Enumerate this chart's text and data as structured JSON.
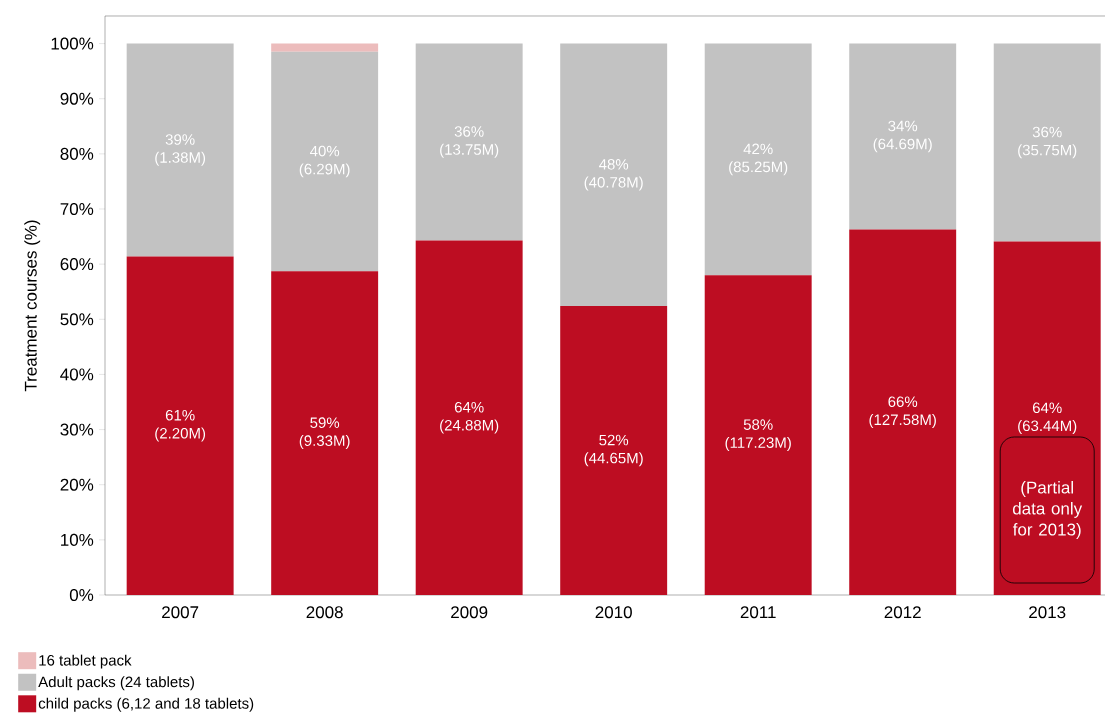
{
  "chart_data": {
    "type": "bar",
    "stacked": true,
    "categories": [
      "2007",
      "2008",
      "2009",
      "2010",
      "2011",
      "2012",
      "2013"
    ],
    "series": [
      {
        "name": "child packs (6,12 and 18 tablets)",
        "color": "#bd0d22",
        "values": [
          61.4,
          58.7,
          64.3,
          52.4,
          58.0,
          66.3,
          64.1
        ],
        "value_labels": [
          "61% (2.20M)",
          "59% (9.33M)",
          "64% (24.88M)",
          "52% (44.65M)",
          "58% (117.23M)",
          "66% (127.58M)",
          "64% (63.44M)"
        ]
      },
      {
        "name": "Adult packs (24 tablets)",
        "color": "#c2c2c2",
        "values": [
          38.6,
          39.8,
          35.7,
          47.6,
          42.0,
          33.7,
          35.9
        ],
        "value_labels": [
          "39% (1.38M)",
          "40% (6.29M)",
          "36% (13.75M)",
          "48% (40.78M)",
          "42% (85.25M)",
          "34% (64.69M)",
          "36% (35.75M)"
        ]
      },
      {
        "name": "16 tablet pack",
        "color": "#ecbcbc",
        "values": [
          0,
          1.5,
          0,
          0,
          0,
          0,
          0
        ]
      }
    ],
    "ylim": [
      0,
      105
    ],
    "yticks": [
      {
        "value": 0,
        "label": "0%"
      },
      {
        "value": 10,
        "label": "10%"
      },
      {
        "value": 20,
        "label": "20%"
      },
      {
        "value": 30,
        "label": "30%"
      },
      {
        "value": 40,
        "label": "40%"
      },
      {
        "value": 50,
        "label": "50%"
      },
      {
        "value": 60,
        "label": "60%"
      },
      {
        "value": 70,
        "label": "70%"
      },
      {
        "value": 80,
        "label": "80%"
      },
      {
        "value": 90,
        "label": "90%"
      },
      {
        "value": 100,
        "label": "100%"
      }
    ],
    "ylabel": "Treatment courses (%)",
    "legend": "bottom left",
    "annotations": [
      "(Partial data only for 2013)"
    ]
  }
}
